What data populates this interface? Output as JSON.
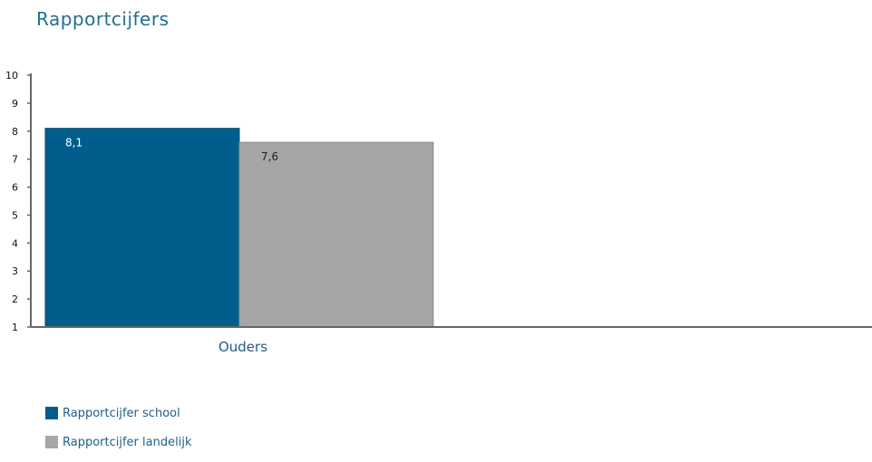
{
  "chart_data": {
    "type": "bar",
    "title": "Rapportcijfers",
    "categories": [
      "Ouders"
    ],
    "series": [
      {
        "name": "Rapportcijfer school",
        "values": [
          8.1
        ],
        "labels": [
          "8,1"
        ],
        "color": "#005d8c",
        "label_color": "#ffffff"
      },
      {
        "name": "Rapportcijfer landelijk",
        "values": [
          7.6
        ],
        "labels": [
          "7,6"
        ],
        "color": "#a6a6a6",
        "label_color": "#222222"
      }
    ],
    "ylim": [
      1,
      10
    ],
    "yticks": [
      "1",
      "2",
      "3",
      "4",
      "5",
      "6",
      "7",
      "8",
      "9",
      "10"
    ],
    "grid": false,
    "legend": "bottom-left"
  }
}
